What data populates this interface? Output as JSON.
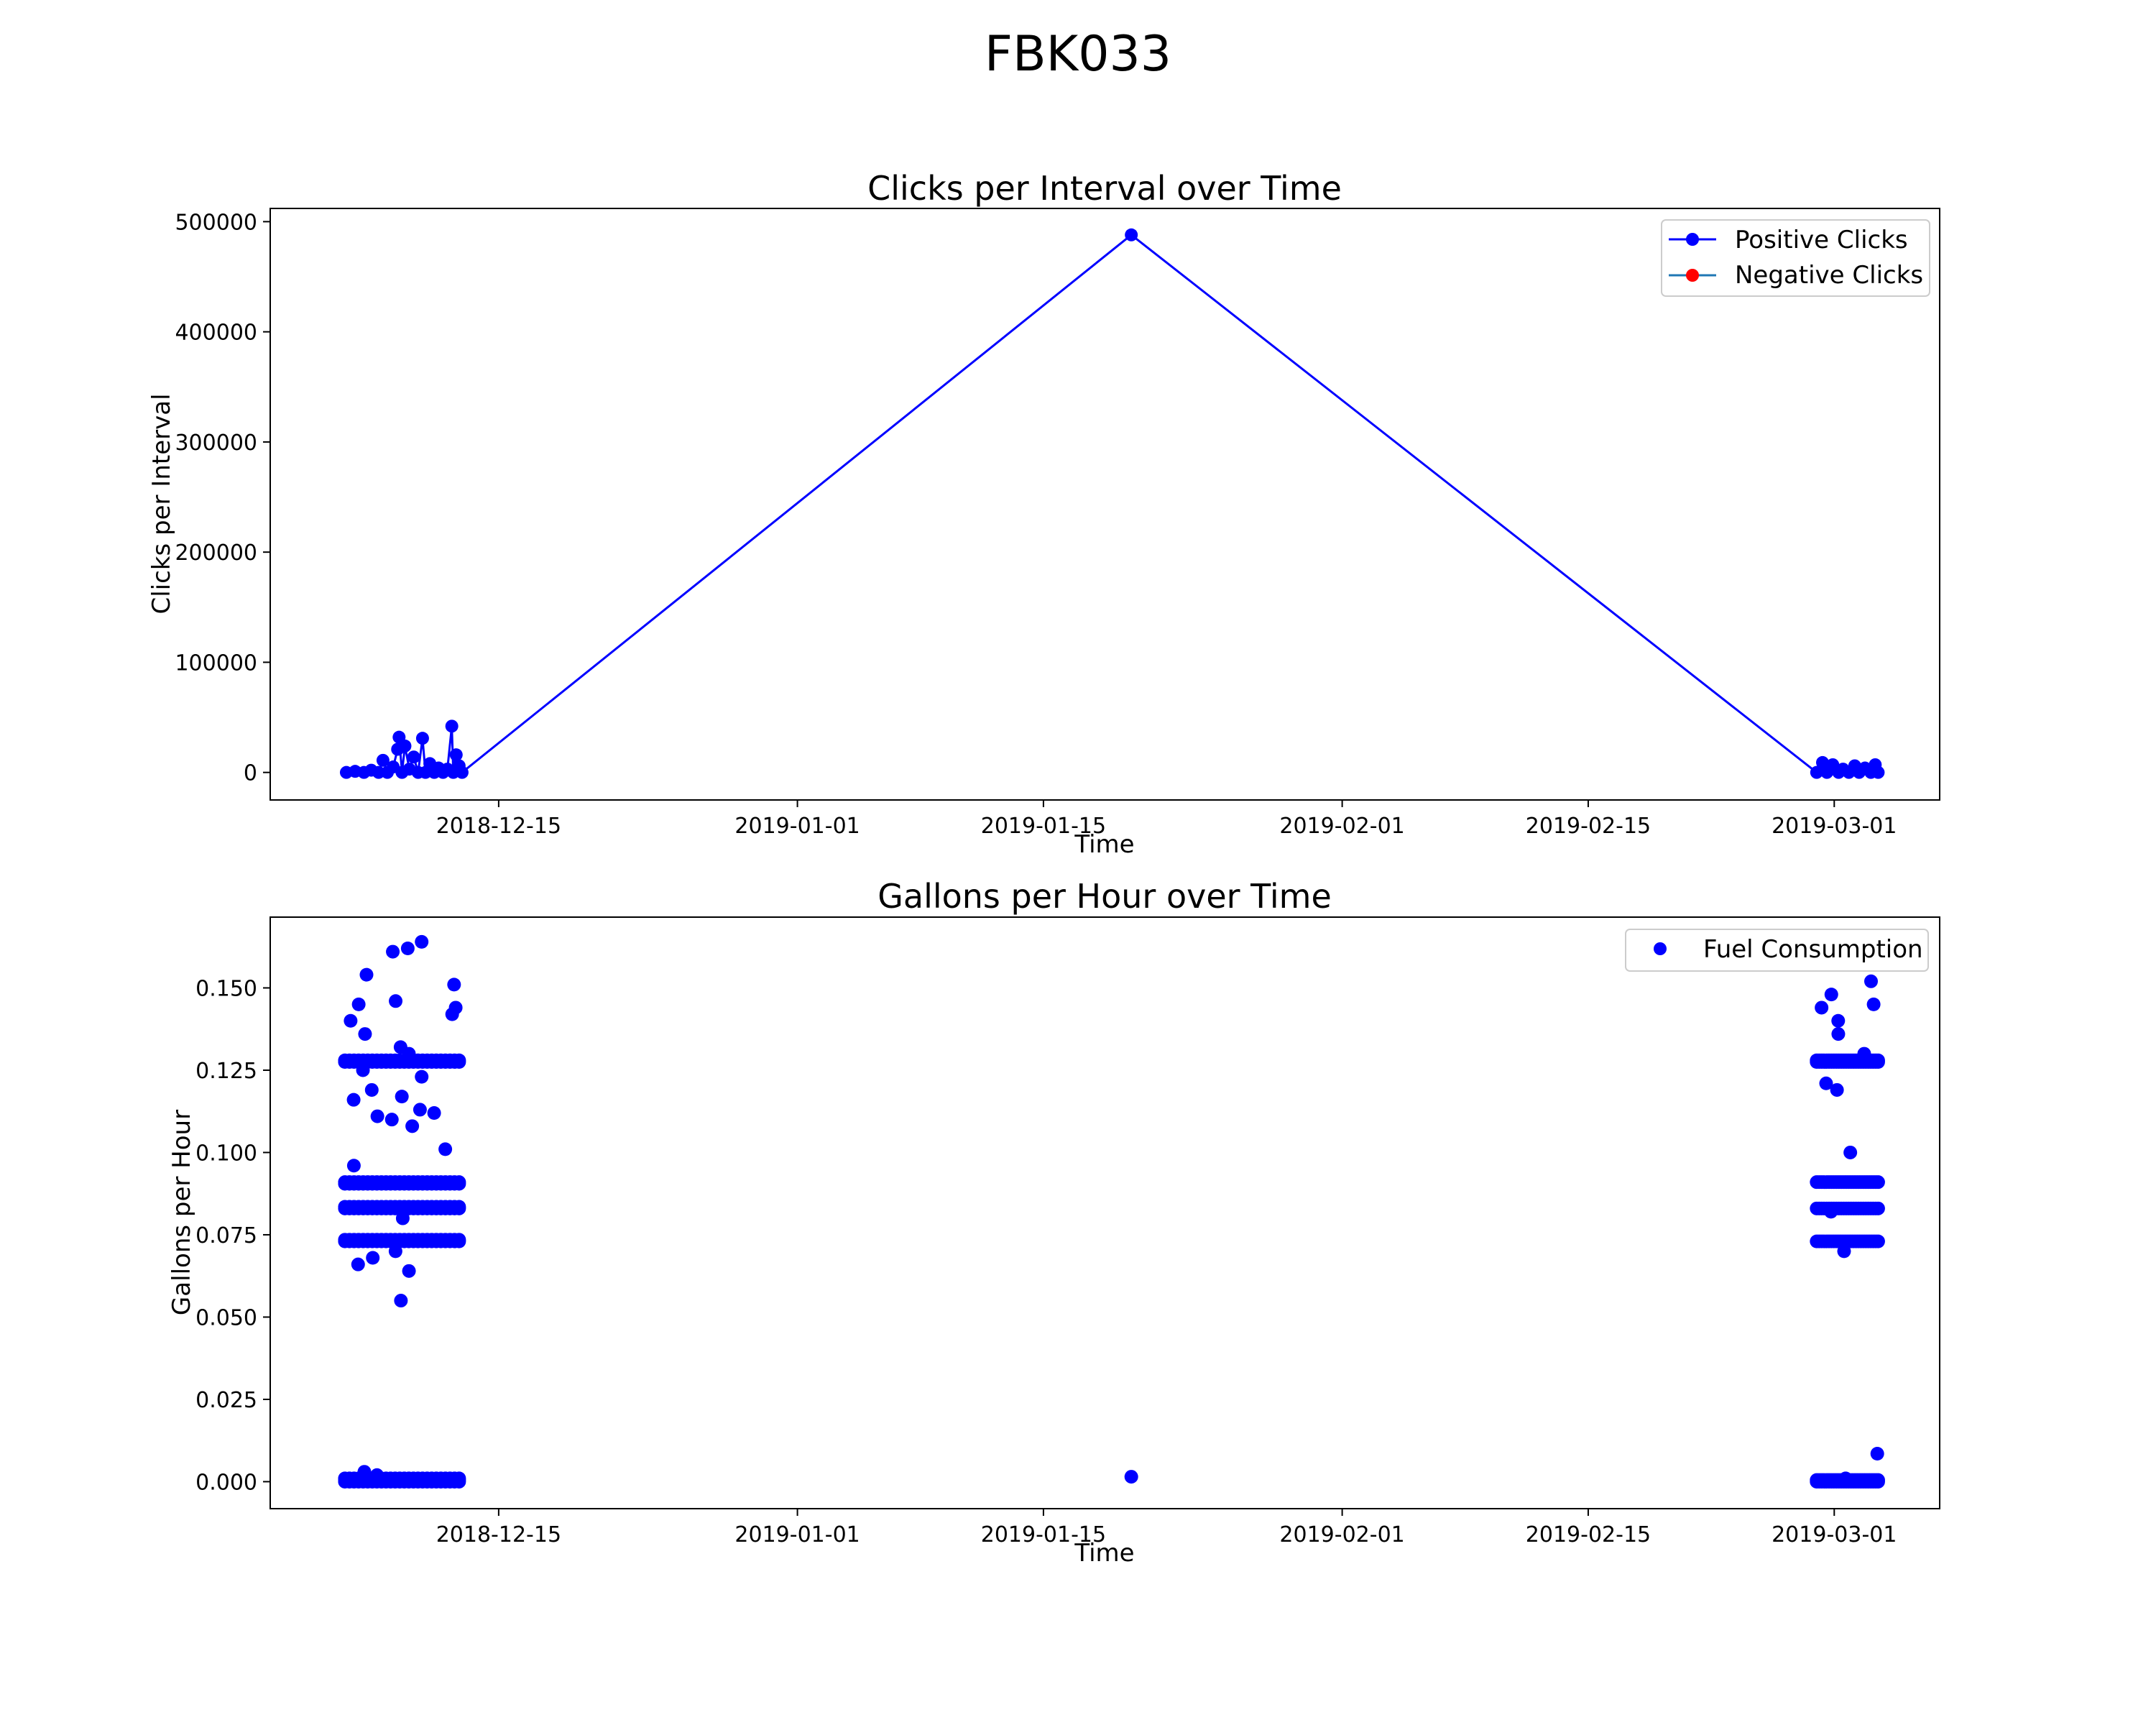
{
  "figure": {
    "title": "FBK033"
  },
  "chart_data": [
    {
      "type": "line",
      "title": "Clicks per Interval over Time",
      "xlabel": "Time",
      "ylabel": "Clicks per Interval",
      "xlim": [
        "2018-12-02",
        "2019-03-07"
      ],
      "ylim": [
        -25000,
        512000
      ],
      "xticks": [
        "2018-12-15",
        "2019-01-01",
        "2019-01-15",
        "2019-02-01",
        "2019-02-15",
        "2019-03-01"
      ],
      "yticks": [
        0,
        100000,
        200000,
        300000,
        400000,
        500000
      ],
      "ytick_labels": [
        "0",
        "100000",
        "200000",
        "300000",
        "400000",
        "500000"
      ],
      "grid": false,
      "legend": {
        "position": "top-right"
      },
      "series": [
        {
          "name": "Positive Clicks",
          "color": "#0000ff",
          "marker": "circle",
          "points": [
            [
              "2018-12-06 08:00",
              0
            ],
            [
              "2018-12-06 20:00",
              1000
            ],
            [
              "2018-12-07 08:00",
              0
            ],
            [
              "2018-12-07 18:00",
              2000
            ],
            [
              "2018-12-08 04:00",
              0
            ],
            [
              "2018-12-08 10:00",
              11000
            ],
            [
              "2018-12-08 16:00",
              0
            ],
            [
              "2018-12-09 00:00",
              5000
            ],
            [
              "2018-12-09 06:00",
              21000
            ],
            [
              "2018-12-09 08:00",
              32000
            ],
            [
              "2018-12-09 12:00",
              0
            ],
            [
              "2018-12-09 16:00",
              24000
            ],
            [
              "2018-12-09 22:00",
              3000
            ],
            [
              "2018-12-10 04:00",
              14000
            ],
            [
              "2018-12-10 10:00",
              0
            ],
            [
              "2018-12-10 16:00",
              31000
            ],
            [
              "2018-12-10 20:00",
              0
            ],
            [
              "2018-12-11 02:00",
              8000
            ],
            [
              "2018-12-11 08:00",
              0
            ],
            [
              "2018-12-11 14:00",
              4000
            ],
            [
              "2018-12-11 20:00",
              0
            ],
            [
              "2018-12-12 02:00",
              3000
            ],
            [
              "2018-12-12 08:00",
              42000
            ],
            [
              "2018-12-12 10:00",
              0
            ],
            [
              "2018-12-12 14:00",
              16000
            ],
            [
              "2018-12-12 18:00",
              6000
            ],
            [
              "2018-12-12 22:00",
              0
            ],
            [
              "2019-01-20 00:00",
              488000
            ],
            [
              "2019-02-28 00:00",
              0
            ],
            [
              "2019-02-28 08:00",
              9000
            ],
            [
              "2019-02-28 14:00",
              0
            ],
            [
              "2019-02-28 22:00",
              7000
            ],
            [
              "2019-03-01 06:00",
              0
            ],
            [
              "2019-03-01 12:00",
              3000
            ],
            [
              "2019-03-01 20:00",
              0
            ],
            [
              "2019-03-02 04:00",
              6000
            ],
            [
              "2019-03-02 10:00",
              0
            ],
            [
              "2019-03-02 18:00",
              4000
            ],
            [
              "2019-03-03 02:00",
              0
            ],
            [
              "2019-03-03 08:00",
              7000
            ],
            [
              "2019-03-03 12:00",
              0
            ]
          ]
        },
        {
          "name": "Negative Clicks",
          "color": "#ff0000",
          "line_color": "#1f77b4",
          "marker": "circle",
          "points": []
        }
      ]
    },
    {
      "type": "scatter",
      "title": "Gallons per Hour over Time",
      "xlabel": "Time",
      "ylabel": "Gallons per Hour",
      "xlim": [
        "2018-12-02",
        "2019-03-07"
      ],
      "ylim": [
        -0.0082,
        0.1715
      ],
      "xticks": [
        "2018-12-15",
        "2019-01-01",
        "2019-01-15",
        "2019-02-01",
        "2019-02-15",
        "2019-03-01"
      ],
      "yticks": [
        0,
        0.025,
        0.05,
        0.075,
        0.1,
        0.125,
        0.15
      ],
      "ytick_labels": [
        "0.000",
        "0.025",
        "0.050",
        "0.075",
        "0.100",
        "0.125",
        "0.150"
      ],
      "grid": false,
      "legend": {
        "position": "top-right"
      },
      "series": [
        {
          "name": "Fuel Consumption",
          "color": "#0000ff",
          "clusters": [
            {
              "start": "2018-12-06 06:00",
              "end": "2018-12-12 18:00",
              "dense_levels": [
                0.0,
                0.0005,
                0.001,
                0.073,
                0.0735,
                0.083,
                0.0835,
                0.0905,
                0.091,
                0.1275,
                0.128
              ],
              "scatter_values": [
                0.055,
                0.064,
                0.066,
                0.068,
                0.07,
                0.08,
                0.096,
                0.101,
                0.108,
                0.11,
                0.111,
                0.112,
                0.113,
                0.116,
                0.117,
                0.119,
                0.123,
                0.125,
                0.13,
                0.132,
                0.136,
                0.14,
                0.142,
                0.144,
                0.145,
                0.146,
                0.151,
                0.154,
                0.161,
                0.162,
                0.164,
                0.002,
                0.003
              ]
            },
            {
              "start": "2019-01-20 00:00",
              "end": "2019-01-20 00:00",
              "dense_levels": [],
              "scatter_values": [
                0.0015
              ]
            },
            {
              "start": "2019-02-28 00:00",
              "end": "2019-03-03 12:00",
              "dense_levels": [
                0.0,
                0.0005,
                0.073,
                0.083,
                0.091,
                0.1275,
                0.128
              ],
              "scatter_values": [
                0.0085,
                0.07,
                0.082,
                0.1,
                0.119,
                0.121,
                0.13,
                0.136,
                0.14,
                0.144,
                0.145,
                0.148,
                0.152,
                0.001
              ]
            }
          ]
        }
      ]
    }
  ]
}
